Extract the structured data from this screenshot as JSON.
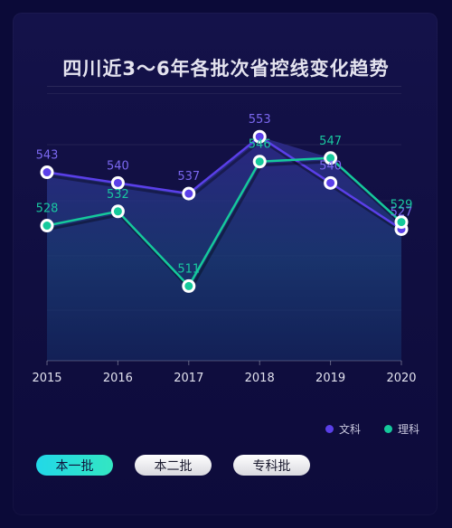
{
  "title": "四川近3～6年各批次省控线变化趋势",
  "colors": {
    "background": "#0b0a38",
    "card": "#14124a",
    "wenke": "#5a3fe8",
    "like": "#15c99b",
    "wenke_label": "#7b68f0",
    "like_label": "#19c8a0",
    "active_tab": "#22d8e8"
  },
  "legend": [
    {
      "label": "文科",
      "color": "#5a3fe8"
    },
    {
      "label": "理科",
      "color": "#15c99b"
    }
  ],
  "tabs": [
    {
      "label": "本一批",
      "active": true
    },
    {
      "label": "本二批",
      "active": false
    },
    {
      "label": "专科批",
      "active": false
    }
  ],
  "chart_data": {
    "type": "line",
    "x": [
      "2015",
      "2016",
      "2017",
      "2018",
      "2019",
      "2020"
    ],
    "series": [
      {
        "name": "文科",
        "values": [
          543,
          540,
          537,
          553,
          540,
          527
        ],
        "color": "#5a3fe8"
      },
      {
        "name": "理科",
        "values": [
          528,
          532,
          511,
          546,
          547,
          529
        ],
        "color": "#15c99b"
      }
    ],
    "ylim": [
      490,
      565
    ],
    "grid": true,
    "legend_position": "bottom-right"
  }
}
